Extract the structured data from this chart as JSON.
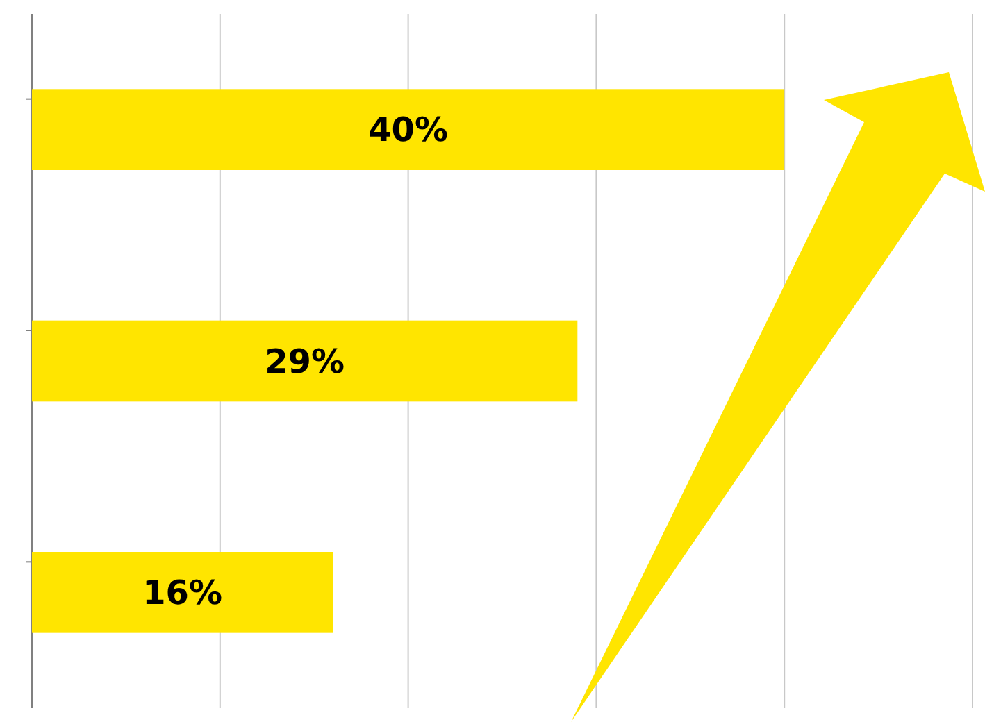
{
  "chart_data": {
    "type": "bar",
    "orientation": "horizontal",
    "categories": [
      null,
      null,
      null
    ],
    "values": [
      40,
      29,
      16
    ],
    "value_labels": [
      "40%",
      "29%",
      "16%"
    ],
    "color": "#ffe500",
    "xlim": [
      0,
      50
    ],
    "xticks": [
      {
        "value": 0,
        "label": null
      },
      {
        "value": 10,
        "label": null
      },
      {
        "value": 20,
        "label": null
      },
      {
        "value": 30,
        "label": null
      },
      {
        "value": 40,
        "label": null
      },
      {
        "value": 50,
        "label": null
      }
    ],
    "grid": "x"
  }
}
